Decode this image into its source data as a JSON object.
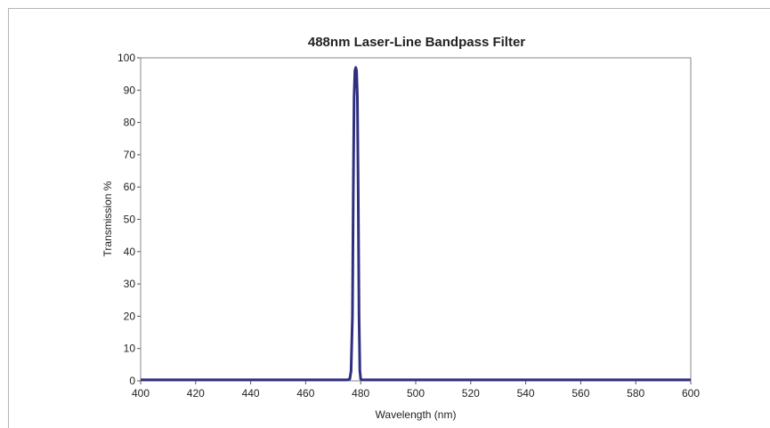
{
  "chart_data": {
    "type": "line",
    "title": "488nm Laser-Line Bandpass Filter",
    "xlabel": "Wavelength (nm)",
    "ylabel": "Transmission %",
    "xlim": [
      400,
      600
    ],
    "ylim": [
      0,
      100
    ],
    "x_ticks": [
      400,
      420,
      440,
      460,
      480,
      500,
      520,
      540,
      560,
      580,
      600
    ],
    "y_ticks": [
      0,
      10,
      20,
      30,
      40,
      50,
      60,
      70,
      80,
      90,
      100
    ],
    "grid": false,
    "legend": "none",
    "line_color": "#2e2f7f",
    "series": [
      {
        "x": [
          400,
          475,
          476,
          476.5,
          477,
          477.3,
          477.6,
          477.9,
          478.2,
          478.5,
          478.8,
          479.1,
          479.4,
          479.7,
          480,
          480.5,
          481,
          600
        ],
        "y": [
          0.3,
          0.3,
          0.5,
          3,
          20,
          58,
          88,
          96,
          97,
          96,
          88,
          58,
          20,
          3,
          0.5,
          0.3,
          0.3,
          0.3
        ]
      }
    ]
  }
}
